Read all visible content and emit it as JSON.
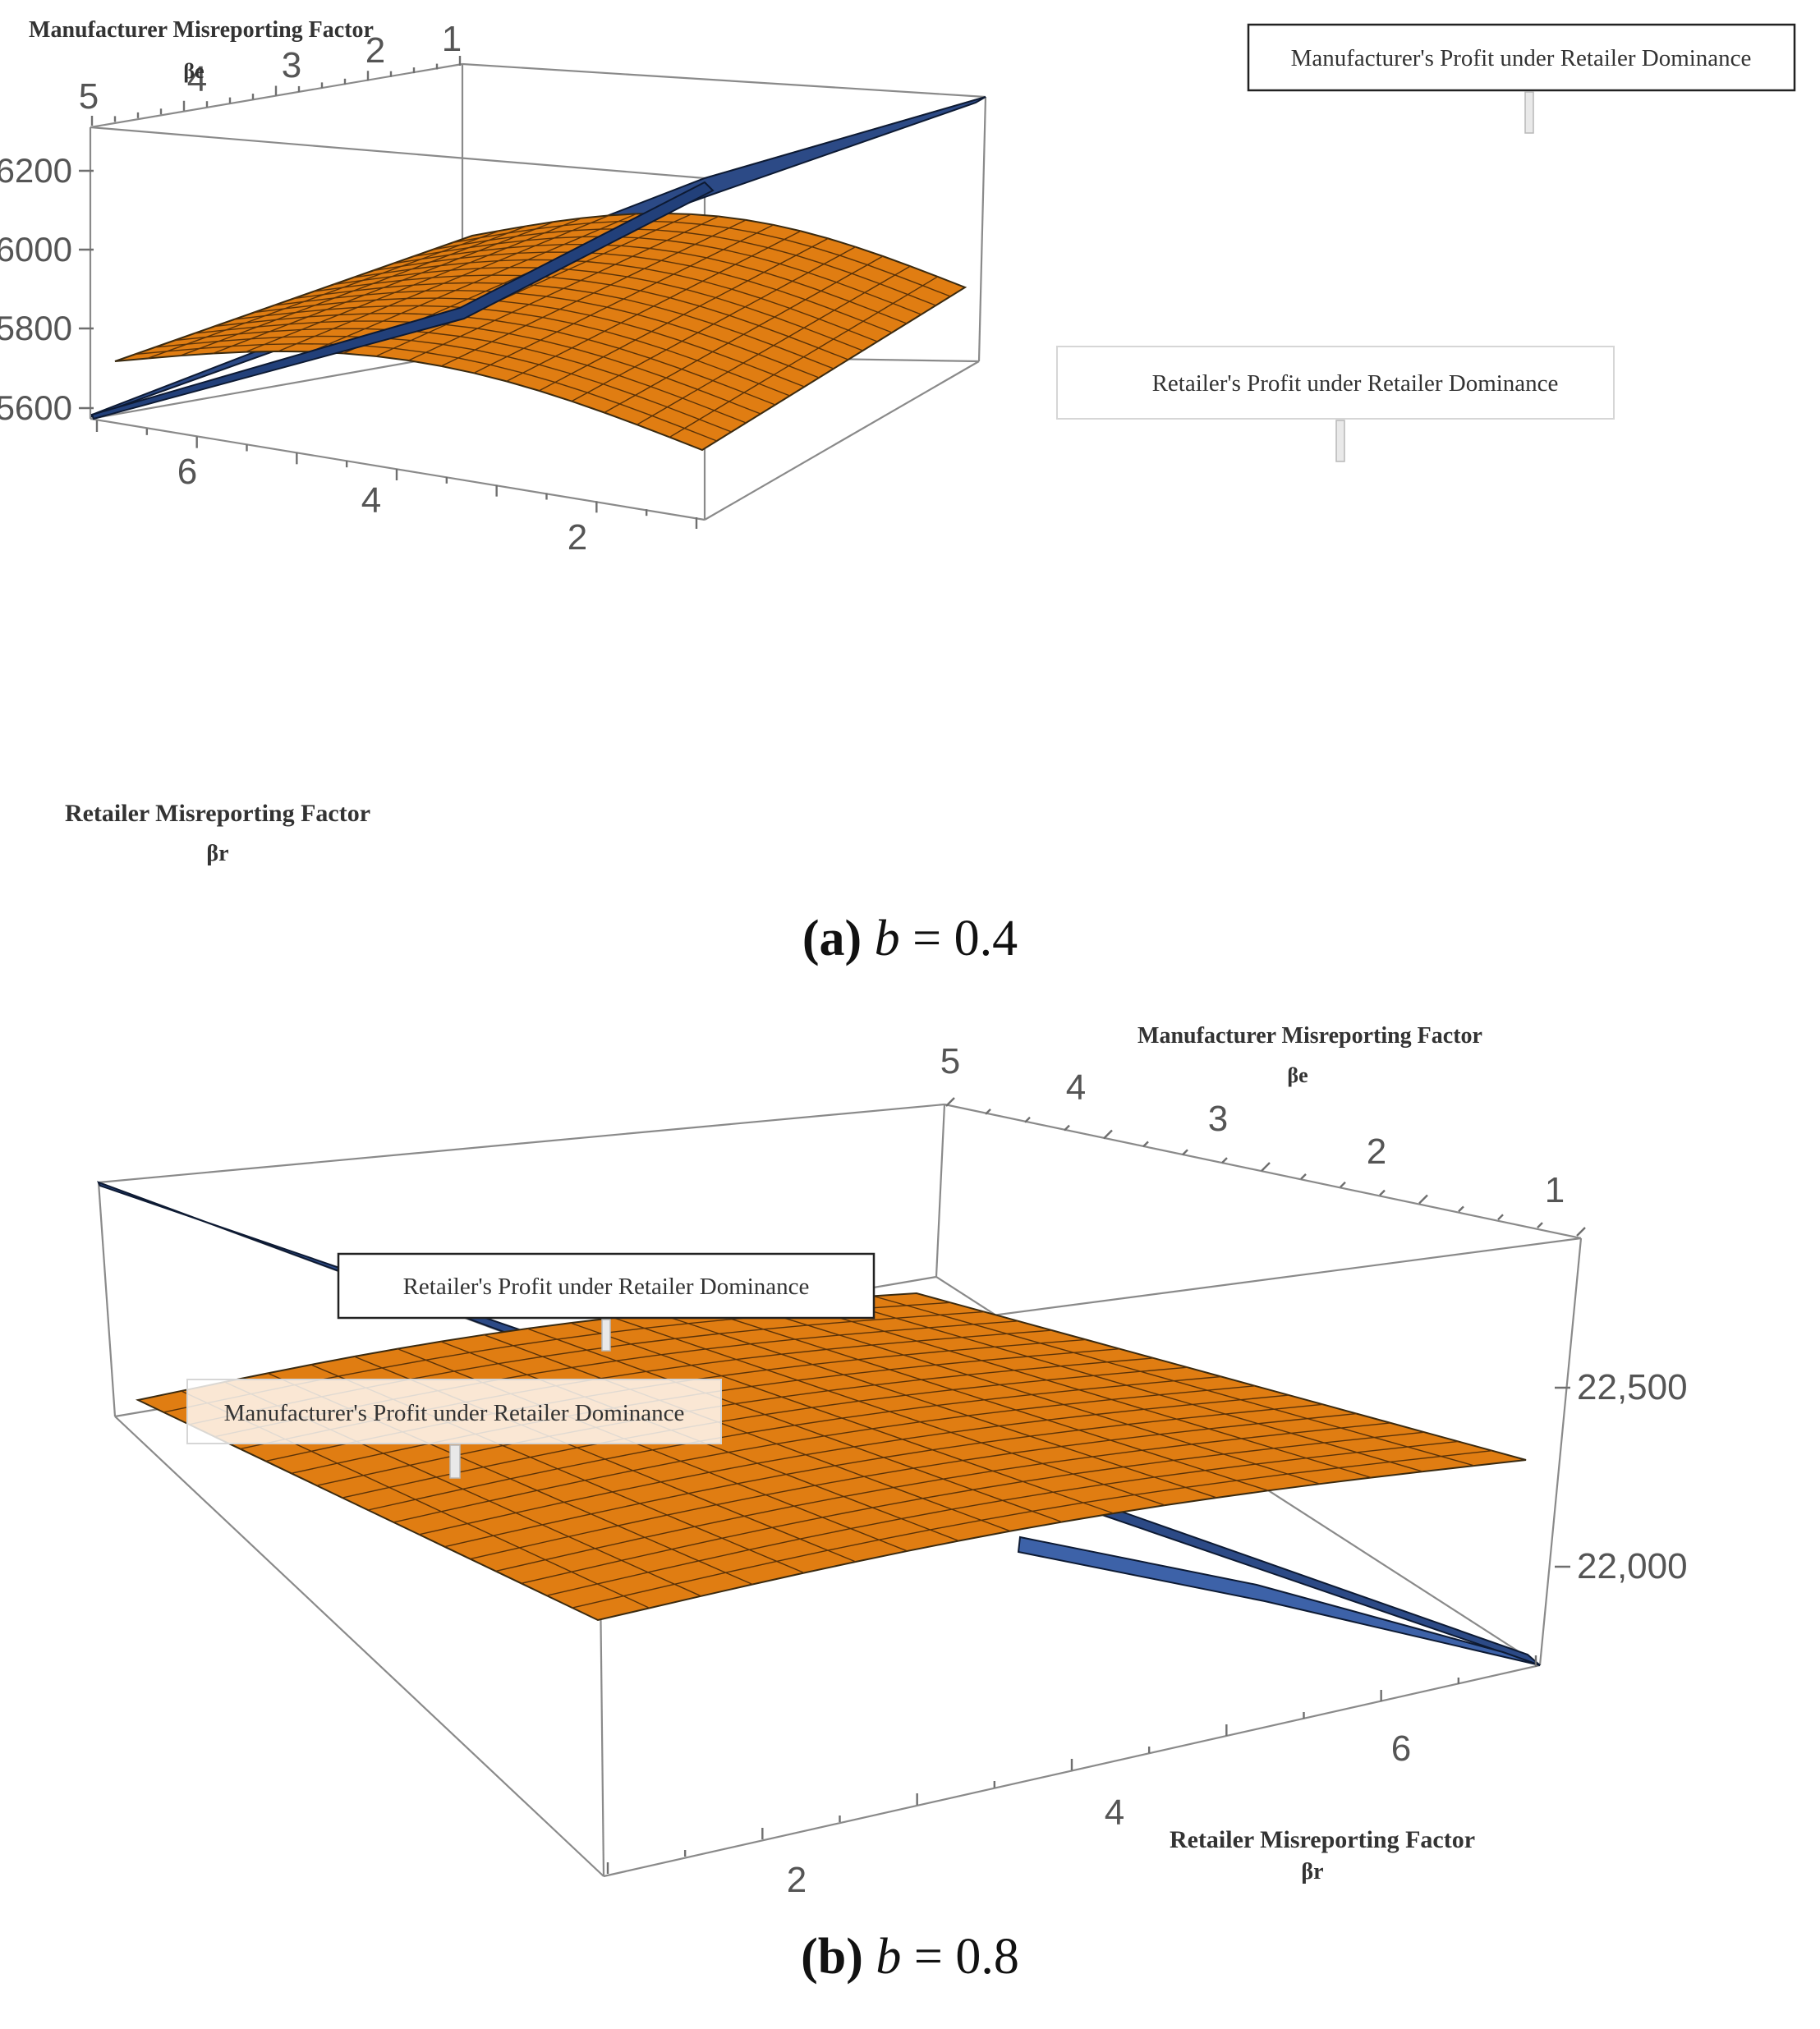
{
  "chart_data": [
    {
      "type": "surface3d",
      "panel": "a",
      "caption": {
        "label": "(a)",
        "var": "b",
        "value": "= 0.4"
      },
      "axes": {
        "beta_e": {
          "title": "Manufacturer Misreporting Factor",
          "symbol": "βe",
          "range": [
            1,
            5
          ],
          "ticks": [
            "5",
            "4",
            "3",
            "2",
            "1"
          ]
        },
        "beta_r": {
          "title": "Retailer Misreporting Factor",
          "symbol": "βr",
          "range": [
            1,
            7
          ],
          "ticks": [
            "6",
            "4",
            "2"
          ]
        },
        "z": {
          "range": [
            5580,
            6330
          ],
          "ticks": [
            "6200",
            "6000",
            "5800",
            "5600"
          ]
        }
      },
      "series": [
        {
          "name": "Manufacturer's Profit under Retailer Dominance",
          "color": "#2c4a86",
          "z_at_beta_r_7": 5590,
          "z_at_beta_r_1": 6320
        },
        {
          "name": "Retailer's Profit under Retailer Dominance",
          "color": "#e07d12",
          "z_min": 5700,
          "z_max": 5980
        }
      ]
    },
    {
      "type": "surface3d",
      "panel": "b",
      "caption": {
        "label": "(b)",
        "var": "b",
        "value": "= 0.8"
      },
      "axes": {
        "beta_e": {
          "title": "Manufacturer Misreporting Factor",
          "symbol": "βe",
          "range": [
            1,
            5
          ],
          "ticks": [
            "5",
            "4",
            "3",
            "2",
            "1"
          ]
        },
        "beta_r": {
          "title": "Retailer Misreporting Factor",
          "symbol": "βr",
          "range": [
            1,
            7
          ],
          "ticks": [
            "2",
            "4",
            "6"
          ]
        },
        "z": {
          "range": [
            21750,
            22900
          ],
          "ticks": [
            "22,500",
            "22,000"
          ]
        }
      },
      "series": [
        {
          "name": "Retailer's Profit under Retailer Dominance",
          "color": "#e07d12",
          "z_min": 22150,
          "z_max": 22650
        },
        {
          "name": "Manufacturer's Profit under Retailer Dominance",
          "color": "#2c4a86",
          "z_at_beta_r_1": 22900,
          "z_at_beta_r_7": 21800
        }
      ]
    }
  ]
}
